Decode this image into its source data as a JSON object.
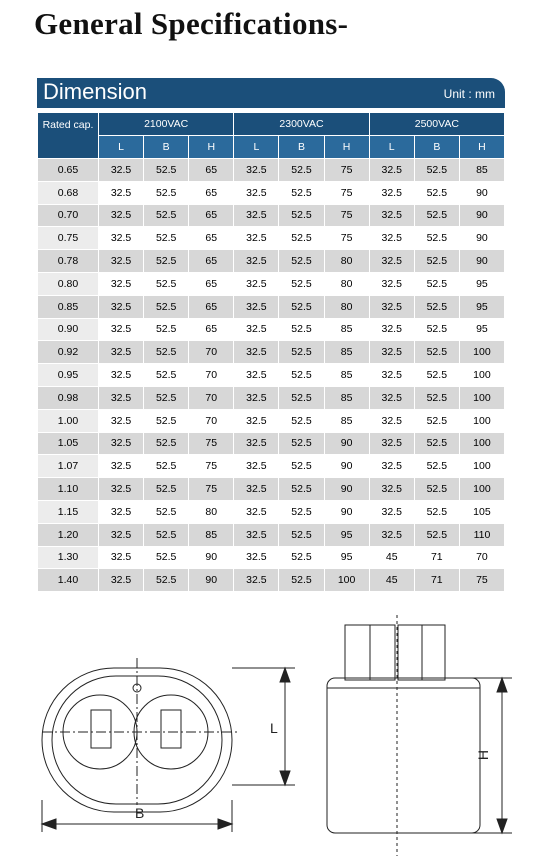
{
  "header": {
    "title": "General Specifications-"
  },
  "section": {
    "title": "Dimension",
    "unit": "Unit : mm"
  },
  "table": {
    "rated": "Rated cap.",
    "groups": [
      "2100VAC",
      "2300VAC",
      "2500VAC"
    ],
    "sub": [
      "L",
      "B",
      "H",
      "L",
      "B",
      "H",
      "L",
      "B",
      "H"
    ],
    "rows": [
      [
        "0.65",
        "32.5",
        "52.5",
        "65",
        "32.5",
        "52.5",
        "75",
        "32.5",
        "52.5",
        "85"
      ],
      [
        "0.68",
        "32.5",
        "52.5",
        "65",
        "32.5",
        "52.5",
        "75",
        "32.5",
        "52.5",
        "90"
      ],
      [
        "0.70",
        "32.5",
        "52.5",
        "65",
        "32.5",
        "52.5",
        "75",
        "32.5",
        "52.5",
        "90"
      ],
      [
        "0.75",
        "32.5",
        "52.5",
        "65",
        "32.5",
        "52.5",
        "75",
        "32.5",
        "52.5",
        "90"
      ],
      [
        "0.78",
        "32.5",
        "52.5",
        "65",
        "32.5",
        "52.5",
        "80",
        "32.5",
        "52.5",
        "90"
      ],
      [
        "0.80",
        "32.5",
        "52.5",
        "65",
        "32.5",
        "52.5",
        "80",
        "32.5",
        "52.5",
        "95"
      ],
      [
        "0.85",
        "32.5",
        "52.5",
        "65",
        "32.5",
        "52.5",
        "80",
        "32.5",
        "52.5",
        "95"
      ],
      [
        "0.90",
        "32.5",
        "52.5",
        "65",
        "32.5",
        "52.5",
        "85",
        "32.5",
        "52.5",
        "95"
      ],
      [
        "0.92",
        "32.5",
        "52.5",
        "70",
        "32.5",
        "52.5",
        "85",
        "32.5",
        "52.5",
        "100"
      ],
      [
        "0.95",
        "32.5",
        "52.5",
        "70",
        "32.5",
        "52.5",
        "85",
        "32.5",
        "52.5",
        "100"
      ],
      [
        "0.98",
        "32.5",
        "52.5",
        "70",
        "32.5",
        "52.5",
        "85",
        "32.5",
        "52.5",
        "100"
      ],
      [
        "1.00",
        "32.5",
        "52.5",
        "70",
        "32.5",
        "52.5",
        "85",
        "32.5",
        "52.5",
        "100"
      ],
      [
        "1.05",
        "32.5",
        "52.5",
        "75",
        "32.5",
        "52.5",
        "90",
        "32.5",
        "52.5",
        "100"
      ],
      [
        "1.07",
        "32.5",
        "52.5",
        "75",
        "32.5",
        "52.5",
        "90",
        "32.5",
        "52.5",
        "100"
      ],
      [
        "1.10",
        "32.5",
        "52.5",
        "75",
        "32.5",
        "52.5",
        "90",
        "32.5",
        "52.5",
        "100"
      ],
      [
        "1.15",
        "32.5",
        "52.5",
        "80",
        "32.5",
        "52.5",
        "90",
        "32.5",
        "52.5",
        "105"
      ],
      [
        "1.20",
        "32.5",
        "52.5",
        "85",
        "32.5",
        "52.5",
        "95",
        "32.5",
        "52.5",
        "110"
      ],
      [
        "1.30",
        "32.5",
        "52.5",
        "90",
        "32.5",
        "52.5",
        "95",
        "45",
        "71",
        "70"
      ],
      [
        "1.40",
        "32.5",
        "52.5",
        "90",
        "32.5",
        "52.5",
        "100",
        "45",
        "71",
        "75"
      ]
    ]
  },
  "diagram": {
    "labels": {
      "L": "L",
      "B": "B",
      "H": "H"
    }
  }
}
